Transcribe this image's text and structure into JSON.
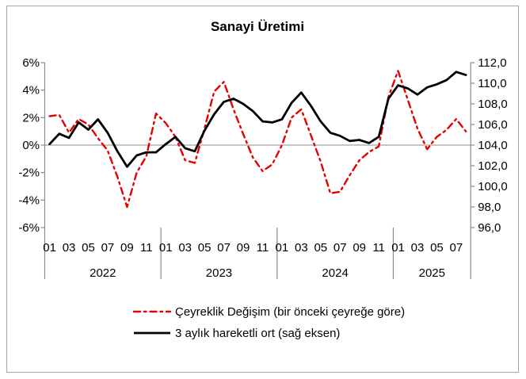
{
  "chart_data": {
    "type": "line",
    "title": "Sanayi Üretimi",
    "legend_position": "bottom",
    "grid": false,
    "zero_line": true,
    "categories": [
      "2022-01",
      "2022-02",
      "2022-03",
      "2022-04",
      "2022-05",
      "2022-06",
      "2022-07",
      "2022-08",
      "2022-09",
      "2022-10",
      "2022-11",
      "2022-12",
      "2023-01",
      "2023-02",
      "2023-03",
      "2023-04",
      "2023-05",
      "2023-06",
      "2023-07",
      "2023-08",
      "2023-09",
      "2023-10",
      "2023-11",
      "2023-12",
      "2024-01",
      "2024-02",
      "2024-03",
      "2024-04",
      "2024-05",
      "2024-06",
      "2024-07",
      "2024-08",
      "2024-09",
      "2024-10",
      "2024-11",
      "2024-12",
      "2025-01",
      "2025-02",
      "2025-03",
      "2025-04",
      "2025-05",
      "2025-06",
      "2025-07",
      "2025-08"
    ],
    "series": [
      {
        "id": "quarterly-change",
        "name": "Çeyreklik Değişim (bir önceki çeyreğe göre)",
        "axis": "left",
        "color": "#e60000",
        "line_style": "dash-dot",
        "values": [
          2.1,
          2.2,
          0.9,
          1.9,
          1.5,
          0.5,
          -0.4,
          -2.3,
          -4.5,
          -2.0,
          -0.8,
          2.3,
          1.6,
          0.6,
          -1.1,
          -1.3,
          1.2,
          3.9,
          4.6,
          2.6,
          0.8,
          -0.9,
          -1.9,
          -1.4,
          0.0,
          2.0,
          2.6,
          0.7,
          -1.2,
          -3.5,
          -3.4,
          -2.2,
          -1.1,
          -0.5,
          -0.1,
          3.5,
          5.4,
          3.3,
          1.2,
          -0.3,
          0.6,
          1.1,
          1.9,
          1.0
        ]
      },
      {
        "id": "moving-average",
        "name": "3 aylık hareketli ort (sağ eksen)",
        "axis": "right",
        "color": "#000000",
        "line_style": "solid",
        "values": [
          104.1,
          105.1,
          104.7,
          106.2,
          105.5,
          106.5,
          105.2,
          103.4,
          101.9,
          103.0,
          103.3,
          103.3,
          104.1,
          104.8,
          103.7,
          103.4,
          105.4,
          107.0,
          108.2,
          108.5,
          108.0,
          107.3,
          106.3,
          106.2,
          106.5,
          108.1,
          109.1,
          107.8,
          106.3,
          105.2,
          104.9,
          104.4,
          104.5,
          104.2,
          104.8,
          108.5,
          109.8,
          109.5,
          108.9,
          109.6,
          109.9,
          110.3,
          111.1,
          110.8
        ]
      }
    ],
    "left_axis": {
      "tick_labels": [
        "6%",
        "4%",
        "2%",
        "0%",
        "-2%",
        "-4%",
        "-6%"
      ],
      "tick_values": [
        6,
        4,
        2,
        0,
        -2,
        -4,
        -6
      ],
      "max": 6,
      "min": -6
    },
    "right_axis": {
      "tick_labels": [
        "112,0",
        "110,0",
        "108,0",
        "106,0",
        "104,0",
        "102,0",
        "100,0",
        "98,0",
        "96,0"
      ],
      "tick_values": [
        112,
        110,
        108,
        106,
        104,
        102,
        100,
        98,
        96
      ],
      "max": 112,
      "min": 96
    },
    "x_axis": {
      "years": [
        {
          "label": "2022",
          "months": 12,
          "tick_labels": [
            "01",
            "03",
            "05",
            "07",
            "09",
            "11"
          ]
        },
        {
          "label": "2023",
          "months": 12,
          "tick_labels": [
            "01",
            "03",
            "05",
            "07",
            "09",
            "11"
          ]
        },
        {
          "label": "2024",
          "months": 12,
          "tick_labels": [
            "01",
            "03",
            "05",
            "07",
            "09",
            "11"
          ]
        },
        {
          "label": "2025",
          "months": 8,
          "tick_labels": [
            "01",
            "03",
            "05",
            "07"
          ]
        }
      ]
    },
    "colors": {
      "axis_line": "#8c8c8c",
      "zero_line": "#8c8c8c",
      "frame_border": "#a6a6a6",
      "text": "#000000"
    }
  }
}
